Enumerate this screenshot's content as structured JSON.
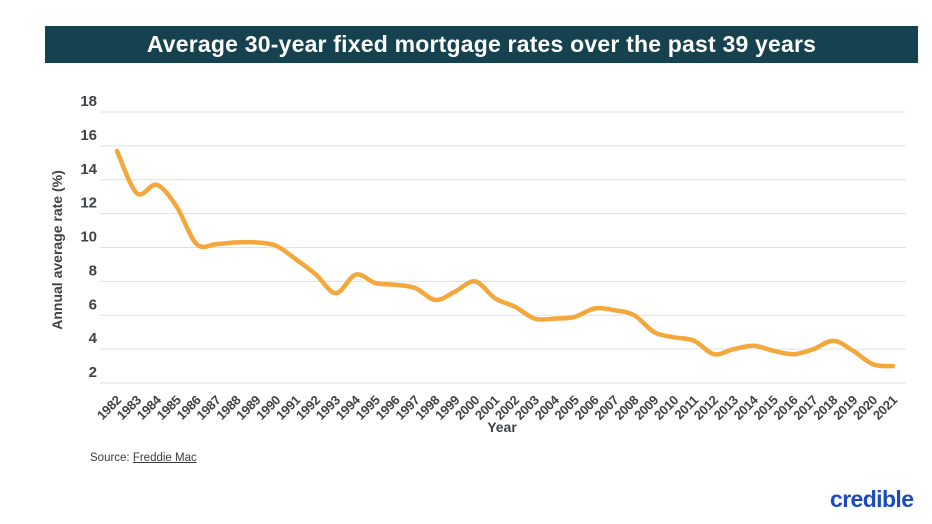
{
  "header": {
    "title": "Average 30-year fixed mortgage rates over the past 39 years",
    "bg_color": "#16414E",
    "text_color": "#ffffff"
  },
  "chart_data": {
    "type": "line",
    "title": "Average 30-year fixed mortgage rates over the past 39 years",
    "xlabel": "Year",
    "ylabel": "Annual average rate (%)",
    "categories": [
      1982,
      1983,
      1984,
      1985,
      1986,
      1987,
      1988,
      1989,
      1990,
      1991,
      1992,
      1993,
      1994,
      1995,
      1996,
      1997,
      1998,
      1999,
      2000,
      2001,
      2002,
      2003,
      2004,
      2005,
      2006,
      2007,
      2008,
      2009,
      2010,
      2011,
      2012,
      2013,
      2014,
      2015,
      2016,
      2017,
      2018,
      2019,
      2020,
      2021
    ],
    "values": [
      15.7,
      13.2,
      13.7,
      12.4,
      10.2,
      10.2,
      10.3,
      10.3,
      10.1,
      9.3,
      8.4,
      7.3,
      8.4,
      7.9,
      7.8,
      7.6,
      6.9,
      7.4,
      8.0,
      7.0,
      6.5,
      5.8,
      5.8,
      5.9,
      6.4,
      6.3,
      6.0,
      5.0,
      4.7,
      4.5,
      3.7,
      4.0,
      4.2,
      3.9,
      3.7,
      4.0,
      4.5,
      3.9,
      3.1,
      3.0
    ],
    "yticks": [
      2,
      4,
      6,
      8,
      10,
      12,
      14,
      16,
      18
    ],
    "ylim": [
      2,
      18
    ],
    "grid": true,
    "legend": false,
    "line_color": "#F4A73B",
    "gridline_color": "#E1E1E1",
    "tick_label_color": "#3F4347"
  },
  "source": {
    "prefix": "Source: ",
    "link_text": "Freddie Mac"
  },
  "logo": {
    "text": "credible",
    "color": "#1B4ABF"
  }
}
